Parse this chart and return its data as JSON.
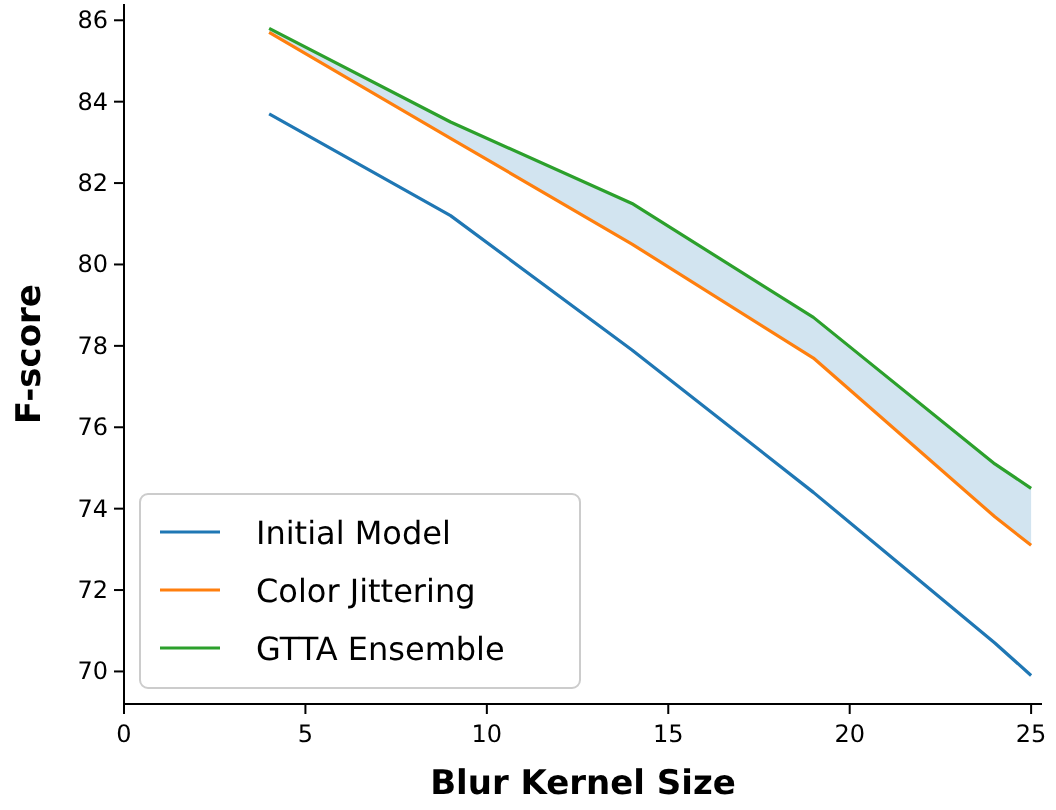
{
  "chart_data": {
    "type": "line",
    "xlabel": "Blur Kernel Size",
    "ylabel": "F-score",
    "x": [
      4,
      9,
      14,
      19,
      24,
      25
    ],
    "xlim": [
      0,
      25.3
    ],
    "ylim": [
      69.2,
      86.4
    ],
    "xticks": [
      0,
      5,
      10,
      15,
      20,
      25
    ],
    "yticks": [
      70,
      72,
      74,
      76,
      78,
      80,
      82,
      84,
      86
    ],
    "series": [
      {
        "name": "Initial Model",
        "color": "#1f77b4",
        "values": [
          83.7,
          81.2,
          77.9,
          74.4,
          70.7,
          69.9
        ]
      },
      {
        "name": "Color Jittering",
        "color": "#ff7f0e",
        "values": [
          85.7,
          83.1,
          80.5,
          77.7,
          73.8,
          73.1
        ]
      },
      {
        "name": "GTTA Ensemble",
        "color": "#2ca02c",
        "values": [
          85.8,
          83.5,
          81.5,
          78.7,
          75.1,
          74.5
        ],
        "lower": [
          85.7,
          83.1,
          80.5,
          77.7,
          73.8,
          73.1
        ],
        "upper": [
          85.8,
          83.5,
          81.5,
          78.7,
          75.1,
          74.5
        ]
      }
    ],
    "legend": "bottom left",
    "grid": false,
    "marker": "none",
    "line_style": "solid"
  }
}
